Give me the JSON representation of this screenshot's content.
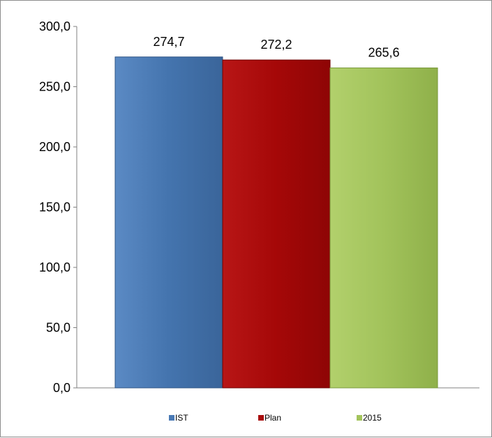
{
  "chart_data": {
    "type": "bar",
    "title": "",
    "xlabel": "",
    "ylabel": "",
    "ylim": [
      0,
      300
    ],
    "yticks": [
      "0,0",
      "50,0",
      "100,0",
      "150,0",
      "200,0",
      "250,0",
      "300,0"
    ],
    "grid": false,
    "legend_position": "bottom",
    "series": [
      {
        "name": "IST",
        "value": 274.7,
        "label": "274,7",
        "color": "#4a7ab5"
      },
      {
        "name": "Plan",
        "value": 272.2,
        "label": "272,2",
        "color": "#a80d0d"
      },
      {
        "name": "2015",
        "value": 265.6,
        "label": "265,6",
        "color": "#a3c45c"
      }
    ]
  }
}
